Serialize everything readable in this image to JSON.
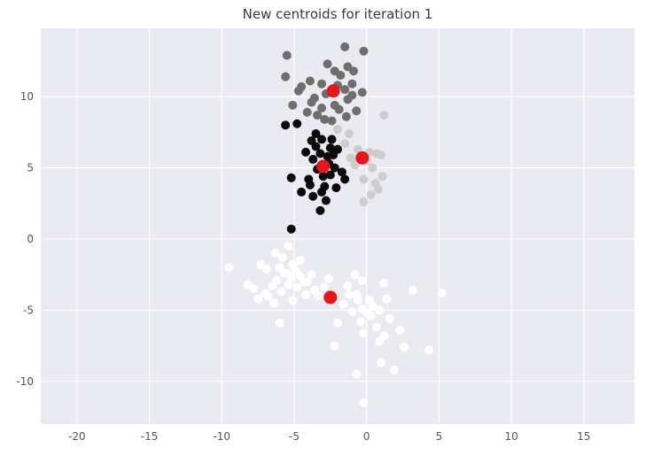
{
  "chart_data": {
    "type": "scatter",
    "title": "New centroids for iteration 1",
    "xlabel": "",
    "ylabel": "",
    "xlim": [
      -22.5,
      18.5
    ],
    "ylim": [
      -13,
      14.8
    ],
    "xticks": [
      -20,
      -15,
      -10,
      -5,
      0,
      5,
      10,
      15
    ],
    "yticks": [
      -10,
      -5,
      0,
      5,
      10
    ],
    "grid": true,
    "background": "#eaeaf2",
    "gridColor": "#ffffff",
    "series": [
      {
        "color": "#6e6e6e",
        "points": [
          [
            -1.5,
            13.5
          ],
          [
            -0.2,
            13.2
          ],
          [
            -5.5,
            12.9
          ],
          [
            -2.7,
            12.3
          ],
          [
            -1.3,
            12.1
          ],
          [
            -1.8,
            11.5
          ],
          [
            -0.9,
            11.8
          ],
          [
            -2.2,
            11.8
          ],
          [
            -5.6,
            11.4
          ],
          [
            -3.9,
            11.1
          ],
          [
            -3.1,
            10.9
          ],
          [
            -1.0,
            10.9
          ],
          [
            -4.5,
            10.7
          ],
          [
            -0.3,
            10.3
          ],
          [
            -1.5,
            10.5
          ],
          [
            -4.7,
            10.4
          ],
          [
            -2.8,
            10.2
          ],
          [
            -1.0,
            10.1
          ],
          [
            -1.3,
            9.8
          ],
          [
            -3.8,
            9.6
          ],
          [
            -5.1,
            9.4
          ],
          [
            -2.2,
            9.4
          ],
          [
            -3.1,
            9.2
          ],
          [
            -1.9,
            9.1
          ],
          [
            -0.7,
            9.0
          ],
          [
            -4.1,
            8.9
          ],
          [
            -3.4,
            8.7
          ],
          [
            -1.4,
            8.6
          ],
          [
            -2.9,
            8.4
          ],
          [
            -2.4,
            8.3
          ],
          [
            -3.6,
            9.9
          ],
          [
            -2.0,
            10.8
          ]
        ]
      },
      {
        "color": "#cdcdcd",
        "points": [
          [
            1.2,
            8.7
          ],
          [
            -2.0,
            7.7
          ],
          [
            -1.2,
            7.4
          ],
          [
            -1.5,
            6.7
          ],
          [
            0.7,
            6.0
          ],
          [
            1.0,
            5.9
          ],
          [
            0.0,
            5.5
          ],
          [
            -0.8,
            5.2
          ],
          [
            0.4,
            5.0
          ],
          [
            1.1,
            4.4
          ],
          [
            -0.2,
            4.2
          ],
          [
            0.6,
            3.9
          ],
          [
            0.8,
            3.5
          ],
          [
            0.3,
            3.1
          ],
          [
            -0.2,
            2.6
          ],
          [
            -0.6,
            6.3
          ],
          [
            0.2,
            6.1
          ],
          [
            -1.1,
            5.7
          ]
        ]
      },
      {
        "color": "#0a0a0a",
        "points": [
          [
            -5.6,
            8.0
          ],
          [
            -4.8,
            8.1
          ],
          [
            -3.5,
            7.4
          ],
          [
            -3.8,
            6.9
          ],
          [
            -3.1,
            7.0
          ],
          [
            -2.4,
            7.0
          ],
          [
            -3.5,
            6.5
          ],
          [
            -2.5,
            6.4
          ],
          [
            -2.0,
            6.3
          ],
          [
            -3.2,
            6.0
          ],
          [
            -2.7,
            5.8
          ],
          [
            -3.7,
            5.6
          ],
          [
            -2.6,
            5.3
          ],
          [
            -2.2,
            5.0
          ],
          [
            -3.4,
            4.9
          ],
          [
            -1.7,
            4.7
          ],
          [
            -2.5,
            4.5
          ],
          [
            -4.0,
            4.2
          ],
          [
            -5.2,
            4.3
          ],
          [
            -3.9,
            3.8
          ],
          [
            -2.9,
            3.7
          ],
          [
            -2.1,
            3.6
          ],
          [
            -3.1,
            3.3
          ],
          [
            -4.5,
            3.3
          ],
          [
            -3.7,
            3.0
          ],
          [
            -2.8,
            2.7
          ],
          [
            -3.2,
            2.0
          ],
          [
            -5.2,
            0.7
          ],
          [
            -1.5,
            4.2
          ],
          [
            -4.2,
            6.1
          ],
          [
            -2.3,
            5.9
          ],
          [
            -3.0,
            4.4
          ]
        ]
      },
      {
        "color": "#ffffff",
        "points": [
          [
            -5.4,
            -0.5
          ],
          [
            -6.3,
            -1.0
          ],
          [
            -5.8,
            -1.3
          ],
          [
            -4.6,
            -1.5
          ],
          [
            -5.1,
            -1.8
          ],
          [
            -6.0,
            -2.0
          ],
          [
            -6.9,
            -2.1
          ],
          [
            -4.9,
            -2.2
          ],
          [
            -5.7,
            -2.4
          ],
          [
            -3.8,
            -2.5
          ],
          [
            -5.2,
            -2.7
          ],
          [
            -6.2,
            -2.9
          ],
          [
            -4.3,
            -3.0
          ],
          [
            -5.4,
            -3.2
          ],
          [
            -6.5,
            -3.3
          ],
          [
            -4.8,
            -3.4
          ],
          [
            -2.9,
            -3.4
          ],
          [
            -3.6,
            -3.6
          ],
          [
            -5.9,
            -3.7
          ],
          [
            -7.0,
            -3.8
          ],
          [
            -4.2,
            -3.9
          ],
          [
            -7.5,
            -4.2
          ],
          [
            -5.1,
            -4.3
          ],
          [
            -6.4,
            -4.5
          ],
          [
            -9.5,
            -2.0
          ],
          [
            -7.8,
            -3.5
          ],
          [
            -6.8,
            -4.0
          ],
          [
            -2.6,
            -2.8
          ],
          [
            -4.6,
            -2.6
          ],
          [
            -5.5,
            -2.4
          ],
          [
            -3.3,
            -4.0
          ],
          [
            -7.3,
            -1.8
          ],
          [
            -8.2,
            -3.2
          ],
          [
            -0.8,
            -2.5
          ],
          [
            -0.3,
            -2.9
          ],
          [
            -1.3,
            -3.3
          ],
          [
            1.2,
            -3.1
          ],
          [
            3.2,
            -3.6
          ],
          [
            5.2,
            -3.8
          ],
          [
            -0.7,
            -3.9
          ],
          [
            0.2,
            -4.3
          ],
          [
            -1.6,
            -4.6
          ],
          [
            -0.3,
            -4.9
          ],
          [
            0.9,
            -5.0
          ],
          [
            -1.0,
            -5.1
          ],
          [
            0.3,
            -5.4
          ],
          [
            1.6,
            -5.6
          ],
          [
            -0.4,
            -5.8
          ],
          [
            -2.0,
            -5.9
          ],
          [
            0.7,
            -6.2
          ],
          [
            2.3,
            -6.4
          ],
          [
            -0.2,
            -6.6
          ],
          [
            1.2,
            -6.8
          ],
          [
            -2.2,
            -7.5
          ],
          [
            0.9,
            -7.2
          ],
          [
            2.6,
            -7.6
          ],
          [
            4.3,
            -7.8
          ],
          [
            1.0,
            -8.7
          ],
          [
            1.9,
            -9.2
          ],
          [
            -0.7,
            -9.5
          ],
          [
            -0.2,
            -11.5
          ],
          [
            -0.6,
            -4.3
          ],
          [
            0.4,
            -4.7
          ],
          [
            0.0,
            -5.2
          ],
          [
            -1.2,
            -3.9
          ],
          [
            -6.0,
            -5.9
          ],
          [
            -4.1,
            -3.0
          ],
          [
            1.4,
            -4.2
          ]
        ]
      }
    ],
    "centroids": {
      "color": "#e8141b",
      "points": [
        [
          -2.3,
          10.4
        ],
        [
          -0.3,
          5.7
        ],
        [
          -3.0,
          5.1
        ],
        [
          -2.5,
          -4.1
        ]
      ]
    }
  }
}
